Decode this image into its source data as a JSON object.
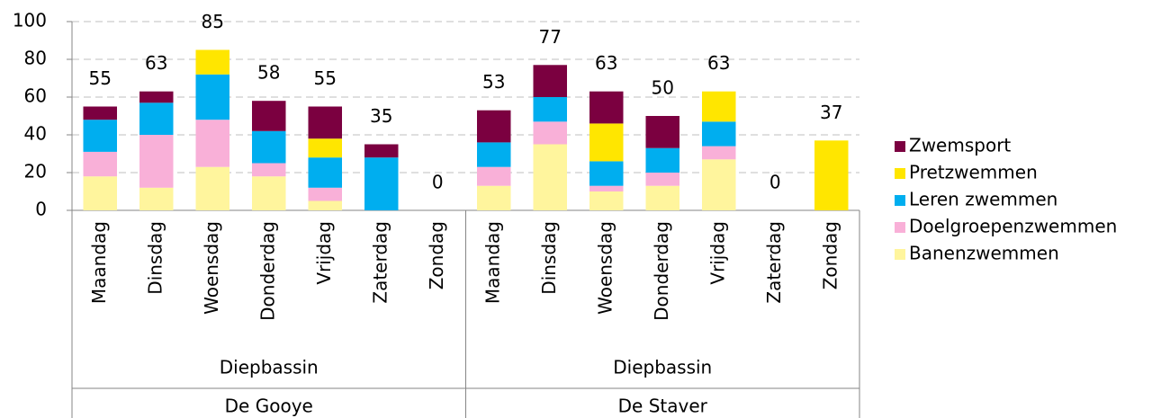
{
  "chart_data": {
    "type": "bar",
    "stacked": true,
    "categories": [
      "Maandag",
      "Dinsdag",
      "Woensdag",
      "Donderdag",
      "Vrijdag",
      "Zaterdag",
      "Zondag",
      "Maandag",
      "Dinsdag",
      "Woensdag",
      "Donderdag",
      "Vrijdag",
      "Zaterdag",
      "Zondag"
    ],
    "subgroups": [
      "Diepbassin",
      "Diepbassin"
    ],
    "groups": [
      "De Gooye",
      "De Staver"
    ],
    "series": [
      {
        "name": "Banenzwemmen",
        "color": "#fff59d",
        "values": [
          18,
          12,
          23,
          18,
          5,
          0,
          0,
          13,
          35,
          10,
          13,
          27,
          0,
          0
        ]
      },
      {
        "name": "Doelgroepenzwemmen",
        "color": "#f9b0d8",
        "values": [
          13,
          28,
          25,
          7,
          7,
          0,
          0,
          10,
          12,
          3,
          7,
          7,
          0,
          0
        ]
      },
      {
        "name": "Leren zwemmen",
        "color": "#00aeef",
        "values": [
          17,
          17,
          24,
          17,
          16,
          28,
          0,
          13,
          13,
          13,
          13,
          13,
          0,
          0
        ]
      },
      {
        "name": "Pretzwemmen",
        "color": "#ffe600",
        "values": [
          0,
          0,
          13,
          0,
          10,
          0,
          0,
          0,
          0,
          20,
          0,
          16,
          0,
          37
        ]
      },
      {
        "name": "Zwemsport",
        "color": "#7b0040",
        "values": [
          7,
          6,
          0,
          16,
          17,
          7,
          0,
          17,
          17,
          17,
          17,
          0,
          0,
          0
        ]
      }
    ],
    "totals": [
      55,
      63,
      85,
      58,
      55,
      35,
      0,
      53,
      77,
      63,
      50,
      63,
      0,
      37
    ],
    "ylim": [
      0,
      100
    ],
    "yticks": [
      0,
      20,
      40,
      60,
      80,
      100
    ],
    "grid": true
  }
}
